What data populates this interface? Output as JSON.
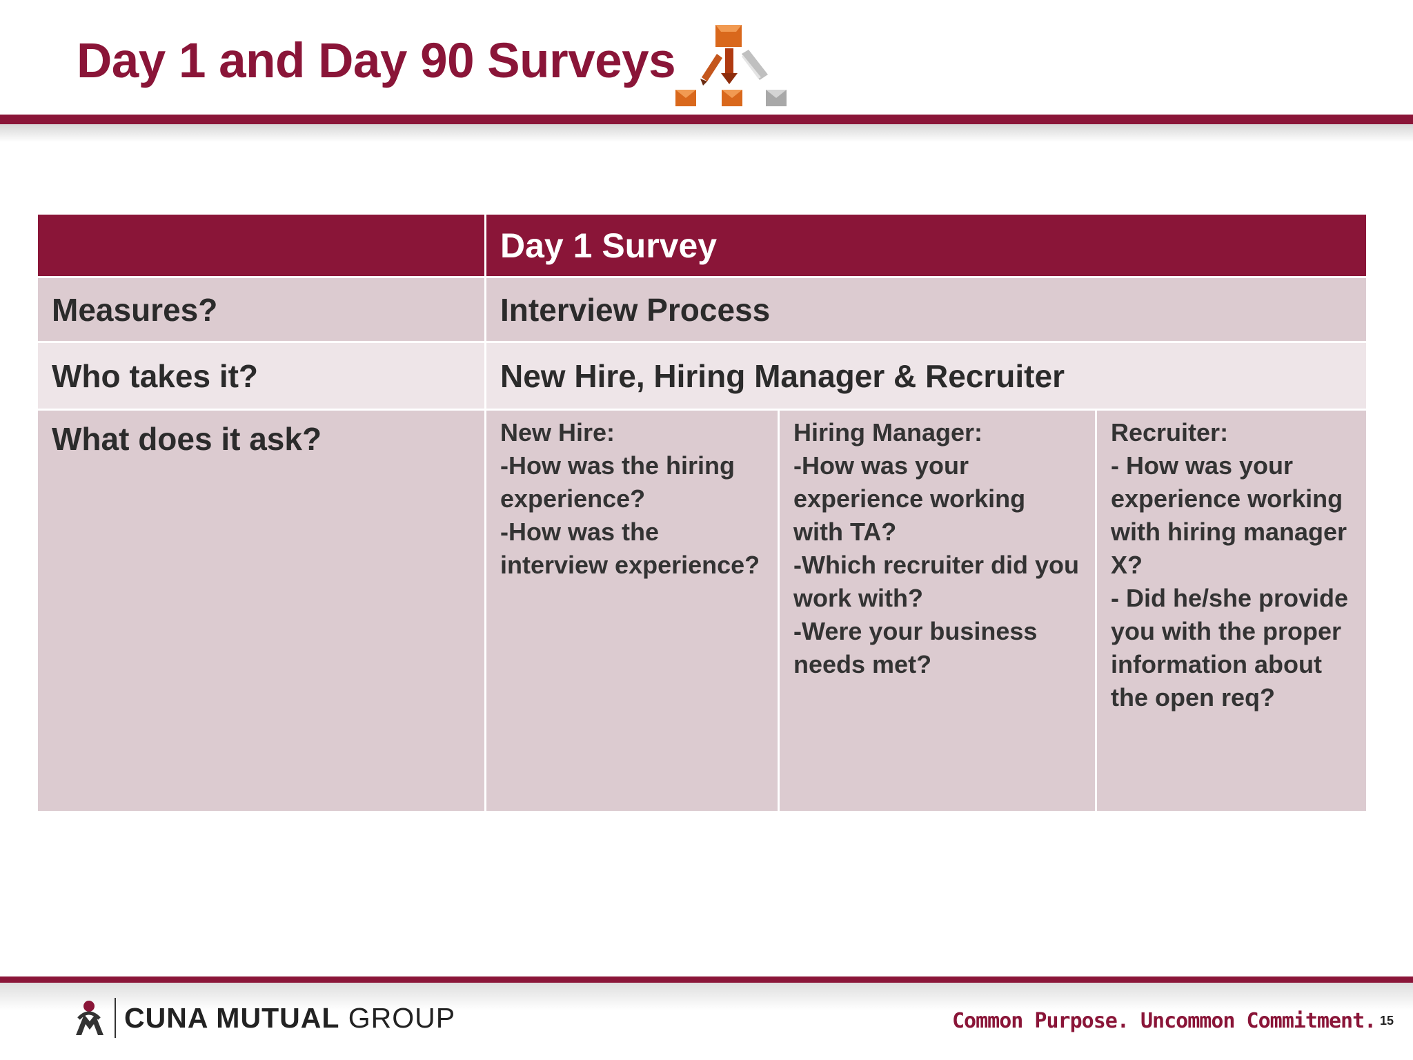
{
  "slide": {
    "title": "Day 1 and Day 90 Surveys",
    "page_number": "15"
  },
  "table": {
    "header": {
      "col1": "",
      "col2": "Day 1 Survey"
    },
    "rows": {
      "measures": {
        "label": "Measures?",
        "value": "Interview Process"
      },
      "who": {
        "label": "Who takes it?",
        "value": "New Hire, Hiring Manager & Recruiter"
      },
      "ask": {
        "label": "What does it ask?",
        "new_hire": [
          "New Hire:",
          "-How was the hiring experience?",
          "-How was the interview experience?"
        ],
        "hiring_manager": [
          "Hiring Manager:",
          "-How was your experience working with TA?",
          "-Which recruiter did you work with?",
          "-Were your business needs met?"
        ],
        "recruiter": [
          "Recruiter:",
          "- How was your experience working with hiring manager X?",
          "- Did he/she provide you with the proper information about the open req?"
        ]
      }
    }
  },
  "footer": {
    "logo_bold": "CUNA MUTUAL",
    "logo_light": " GROUP",
    "tagline": "Common Purpose. Uncommon Commitment."
  },
  "colors": {
    "brand": "#8a1538",
    "row_dark": "#dccbd0",
    "row_light": "#eee5e8",
    "orange": "#d9681c",
    "gray": "#a8a8a8"
  },
  "icons": {
    "header_graphic": "org-chart-pyramid-icon",
    "logo_mark": "cuna-logo-icon"
  }
}
